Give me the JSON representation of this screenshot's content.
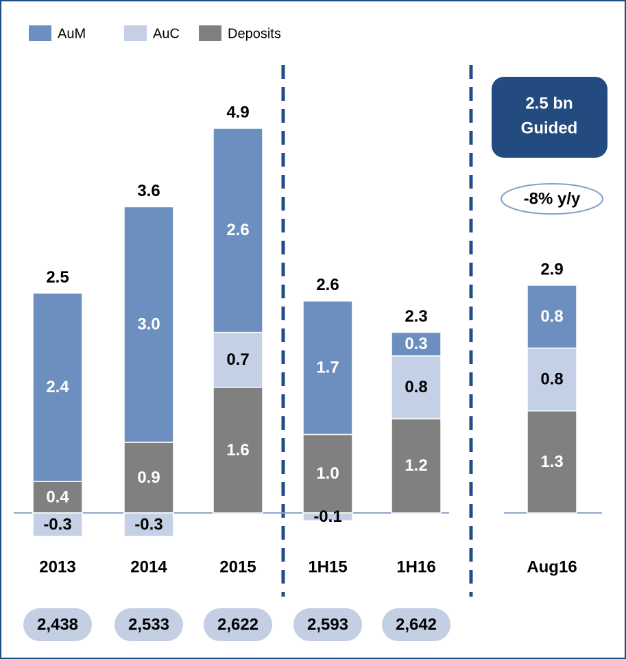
{
  "chart_data": {
    "type": "stacked_bar",
    "categories": [
      "2013",
      "2014",
      "2015",
      "1H15",
      "1H16",
      "Aug16"
    ],
    "series": [
      {
        "name": "AuM",
        "color": "#6d8fbf",
        "text_color": "#ffffff",
        "values": [
          2.4,
          3.0,
          2.6,
          1.7,
          0.3,
          0.8
        ],
        "value_labels": [
          "2.4",
          "3.0",
          "2.6",
          "1.7",
          "0.3",
          "0.8"
        ]
      },
      {
        "name": "AuC",
        "color": "#c4d0e5",
        "text_color": "#000000",
        "values": [
          -0.3,
          -0.3,
          0.7,
          -0.1,
          0.8,
          0.8
        ],
        "value_labels": [
          "-0.3",
          "-0.3",
          "0.7",
          "-0.1",
          "0.8",
          "0.8"
        ]
      },
      {
        "name": "Deposits",
        "color": "#808080",
        "text_color": "#ffffff",
        "values": [
          0.4,
          0.9,
          1.6,
          1.0,
          1.2,
          1.3
        ],
        "value_labels": [
          "0.4",
          "0.9",
          "1.6",
          "1.0",
          "1.2",
          "1.3"
        ]
      }
    ],
    "stack_order": [
      2,
      1,
      0
    ],
    "totals": [
      2.5,
      3.6,
      4.9,
      2.6,
      2.3,
      2.9
    ],
    "footer_values": [
      2438,
      2533,
      2622,
      2593,
      2642,
      null
    ],
    "footer_value_labels": [
      "2,438",
      "2,533",
      "2,622",
      "2,593",
      "2,642",
      null
    ],
    "guidance": [
      "2.5 bn",
      "Guided"
    ],
    "change_label": "-8% y/y",
    "legend": "top-left"
  }
}
